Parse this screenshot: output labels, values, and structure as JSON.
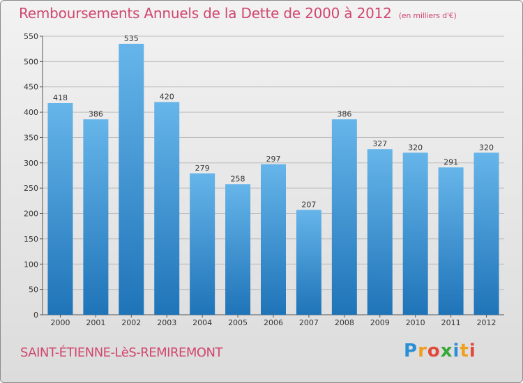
{
  "title": "Remboursements Annuels de la Dette de 2000 à 2012",
  "unit_note": "(en milliers d'€)",
  "commune": "SAINT-ÉTIENNE-LèS-REMIREMONT",
  "logo": {
    "text": "Proxiti",
    "letters": [
      {
        "ch": "P",
        "color": "#2a8fd6"
      },
      {
        "ch": "r",
        "color": "#f0a020"
      },
      {
        "ch": "o",
        "color": "#e04a3a"
      },
      {
        "ch": "x",
        "color": "#38a838"
      },
      {
        "ch": "i",
        "color": "#2a8fd6"
      },
      {
        "ch": "t",
        "color": "#f0a020"
      },
      {
        "ch": "i",
        "color": "#e04a3a"
      }
    ]
  },
  "colors": {
    "bar_top": "#66b5ea",
    "bar_bottom": "#1f74b8",
    "title": "#d0466e"
  },
  "chart_data": {
    "type": "bar",
    "categories": [
      "2000",
      "2001",
      "2002",
      "2003",
      "2004",
      "2005",
      "2006",
      "2007",
      "2008",
      "2009",
      "2010",
      "2011",
      "2012"
    ],
    "values": [
      418,
      386,
      535,
      420,
      279,
      258,
      297,
      207,
      386,
      327,
      320,
      291,
      320
    ],
    "ylim": [
      0,
      550
    ],
    "yticks": [
      0,
      50,
      100,
      150,
      200,
      250,
      300,
      350,
      400,
      450,
      500,
      550
    ],
    "grid": true,
    "xlabel": "",
    "ylabel": ""
  }
}
